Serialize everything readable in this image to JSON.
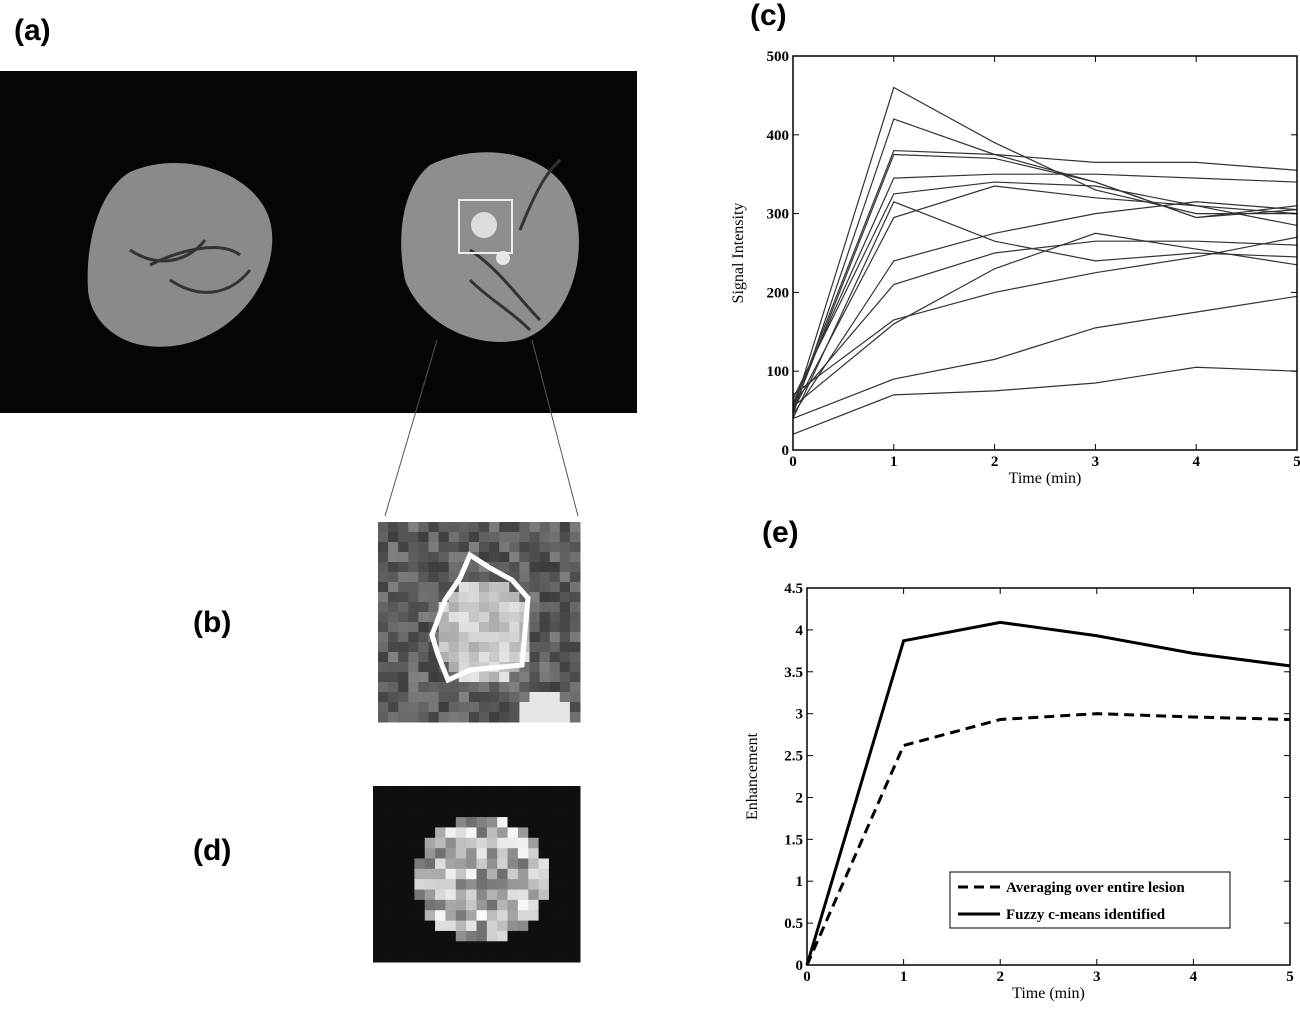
{
  "panel_labels": [
    "(a)",
    "(b)",
    "(c)",
    "(d)",
    "(e)"
  ],
  "chart_data": [
    {
      "type": "line",
      "x": [
        0,
        1,
        2,
        3,
        4,
        5
      ],
      "xlim": [
        0,
        5
      ],
      "xticks": [
        0,
        1,
        2,
        3,
        4,
        5
      ],
      "ylim": [
        0,
        500
      ],
      "yticks": [
        0,
        100,
        200,
        300,
        400,
        500
      ],
      "xlabel": "Time (min)",
      "ylabel": "Signal Intensity",
      "series": [
        {
          "color": "#333333",
          "values": [
            50,
            460,
            390,
            330,
            300,
            300
          ]
        },
        {
          "color": "#333333",
          "values": [
            45,
            420,
            375,
            340,
            295,
            310
          ]
        },
        {
          "color": "#333333",
          "values": [
            55,
            380,
            375,
            365,
            365,
            355
          ]
        },
        {
          "color": "#333333",
          "values": [
            50,
            375,
            370,
            340,
            295,
            305
          ]
        },
        {
          "color": "#333333",
          "values": [
            60,
            345,
            350,
            350,
            345,
            340
          ]
        },
        {
          "color": "#333333",
          "values": [
            65,
            325,
            340,
            335,
            310,
            300
          ]
        },
        {
          "color": "#333333",
          "values": [
            40,
            315,
            265,
            240,
            250,
            245
          ]
        },
        {
          "color": "#333333",
          "values": [
            50,
            295,
            335,
            320,
            310,
            285
          ]
        },
        {
          "color": "#333333",
          "values": [
            45,
            240,
            275,
            300,
            315,
            305
          ]
        },
        {
          "color": "#333333",
          "values": [
            60,
            210,
            250,
            265,
            265,
            260
          ]
        },
        {
          "color": "#333333",
          "values": [
            55,
            160,
            230,
            275,
            255,
            235
          ]
        },
        {
          "color": "#333333",
          "values": [
            70,
            165,
            200,
            225,
            245,
            270
          ]
        },
        {
          "color": "#333333",
          "values": [
            40,
            90,
            115,
            155,
            175,
            195
          ]
        },
        {
          "color": "#333333",
          "values": [
            20,
            70,
            75,
            85,
            105,
            100
          ]
        }
      ]
    },
    {
      "type": "line",
      "x": [
        0,
        1,
        2,
        3,
        4,
        5
      ],
      "xlim": [
        0,
        5
      ],
      "xticks": [
        0,
        1,
        2,
        3,
        4,
        5
      ],
      "ylim": [
        0,
        4.5
      ],
      "yticks": [
        0,
        0.5,
        1,
        1.5,
        2,
        2.5,
        3,
        3.5,
        4,
        4.5
      ],
      "xlabel": "Time (min)",
      "ylabel": "Enhancement",
      "legend": "lower right",
      "series": [
        {
          "name": "Averaging over entire lesion",
          "color": "#000000",
          "linestyle": "dashed",
          "values": [
            0,
            2.62,
            2.93,
            3.0,
            2.96,
            2.93
          ]
        },
        {
          "name": "Fuzzy c-means identified",
          "color": "#000000",
          "linestyle": "solid",
          "values": [
            0,
            3.87,
            4.09,
            3.93,
            3.72,
            3.57
          ]
        }
      ]
    }
  ]
}
